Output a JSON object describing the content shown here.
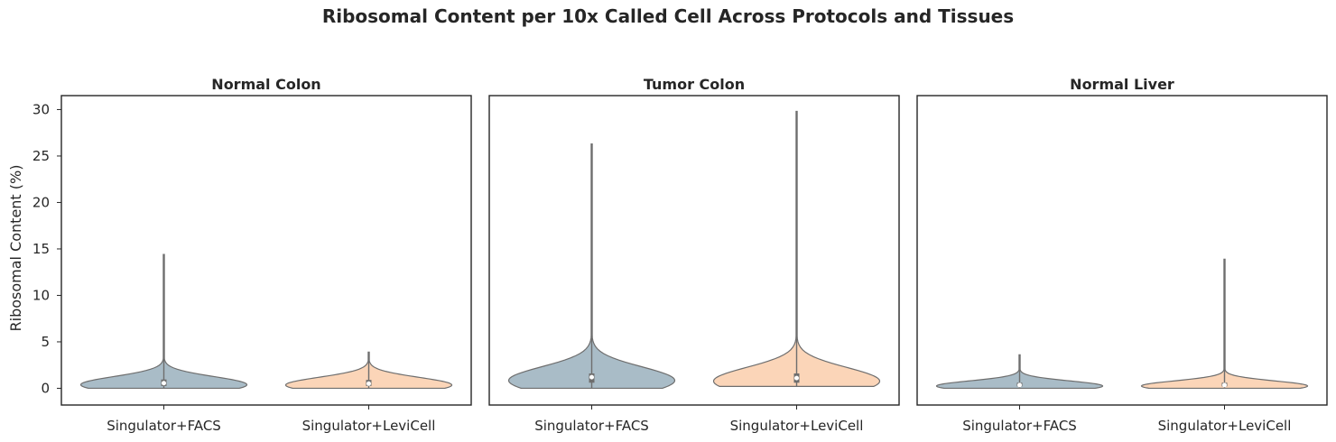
{
  "chart_data": {
    "type": "violin",
    "title": "Ribosomal Content per 10x Called Cell Across Protocols and Tissues",
    "ylabel": "Ribosomal Content (%)",
    "xlabel": "",
    "ylim": [
      -1.8,
      31.5
    ],
    "yticks": [
      0,
      5,
      10,
      15,
      20,
      25,
      30
    ],
    "categories": [
      "Singulator+FACS",
      "Singulator+LeviCell"
    ],
    "colors": {
      "Singulator+FACS": "#a9bcc7",
      "Singulator+LeviCell": "#fbd5b8"
    },
    "grid": false,
    "panels": [
      {
        "title": "Normal Colon",
        "violins": [
          {
            "category": "Singulator+FACS",
            "min": 0.0,
            "max": 14.4,
            "q1": 0.25,
            "median": 0.55,
            "q3": 0.95
          },
          {
            "category": "Singulator+LeviCell",
            "min": 0.0,
            "max": 3.9,
            "q1": 0.25,
            "median": 0.5,
            "q3": 0.9
          }
        ]
      },
      {
        "title": "Tumor Colon",
        "violins": [
          {
            "category": "Singulator+FACS",
            "min": 0.0,
            "max": 26.3,
            "q1": 0.6,
            "median": 1.2,
            "q3": 1.6
          },
          {
            "category": "Singulator+LeviCell",
            "min": 0.2,
            "max": 29.8,
            "q1": 0.6,
            "median": 1.1,
            "q3": 1.6
          }
        ]
      },
      {
        "title": "Normal Liver",
        "violins": [
          {
            "category": "Singulator+FACS",
            "min": 0.0,
            "max": 3.6,
            "q1": 0.2,
            "median": 0.35,
            "q3": 0.6
          },
          {
            "category": "Singulator+LeviCell",
            "min": 0.0,
            "max": 13.9,
            "q1": 0.2,
            "median": 0.35,
            "q3": 0.6
          }
        ]
      }
    ]
  }
}
